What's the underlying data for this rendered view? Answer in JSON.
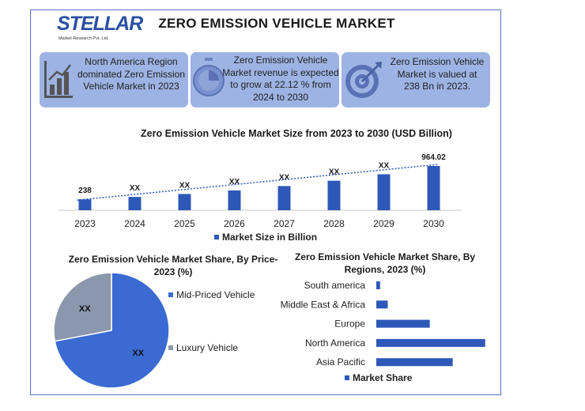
{
  "brand": {
    "name": "TELLAR",
    "initial": "S",
    "tagline": "Market Research Pvt. Ltd."
  },
  "title": "ZERO EMISSION VEHICLE MARKET",
  "info_boxes": [
    {
      "icon": "bar-chart-icon",
      "text_lines": [
        "North America Region",
        "dominated Zero Emission",
        "Vehicle Market in 2023"
      ]
    },
    {
      "icon": "stopwatch-icon",
      "text_lines": [
        "Zero Emission Vehicle",
        "Market revenue is expected",
        "to grow at 22.12 % from",
        "2024 to 2030"
      ]
    },
    {
      "icon": "target-icon",
      "text_lines": [
        "Zero Emission Vehicle",
        "Market is valued at",
        "238 Bn in 2023."
      ]
    }
  ],
  "colors": {
    "bar": "#2e58b8",
    "pie_main": "#3a6ad2",
    "pie_secondary": "#8a97ad",
    "info_bg": "#9db3e3",
    "trend": "#2e58b8"
  },
  "chart_data": [
    {
      "type": "bar",
      "title": "Zero Emission Vehicle Market Size from 2023 to 2030 (USD Billion)",
      "categories": [
        "2023",
        "2024",
        "2025",
        "2026",
        "2027",
        "2028",
        "2029",
        "2030"
      ],
      "series": [
        {
          "name": "Market Size in Billion",
          "values": [
            238,
            290,
            354,
            432,
            527,
            643,
            784,
            964.02
          ]
        }
      ],
      "data_labels": [
        "238",
        "XX",
        "XX",
        "XX",
        "XX",
        "XX",
        "XX",
        "964.02"
      ],
      "trendline": true,
      "ylim": [
        0,
        1100
      ],
      "legend": "bottom",
      "grid": false
    },
    {
      "type": "pie",
      "title": "Zero Emission Vehicle Market Share, By Price-2023 (%)",
      "labels": [
        "Mid-Priced Vehicle",
        "Luxury Vehicle"
      ],
      "values": [
        72,
        28
      ],
      "data_labels": [
        "XX",
        "XX"
      ],
      "legend": "right"
    },
    {
      "type": "bar",
      "orientation": "horizontal",
      "title": "Zero Emission Vehicle Market Share, By Regions, 2023 (%)",
      "categories": [
        "South america",
        "Middle East & Africa",
        "Europe",
        "North America",
        "Asia Pacific"
      ],
      "series": [
        {
          "name": "Market Share",
          "values": [
            2,
            6,
            28,
            57,
            40
          ]
        }
      ],
      "xlim": [
        0,
        60
      ],
      "legend": "bottom",
      "grid": false
    }
  ]
}
